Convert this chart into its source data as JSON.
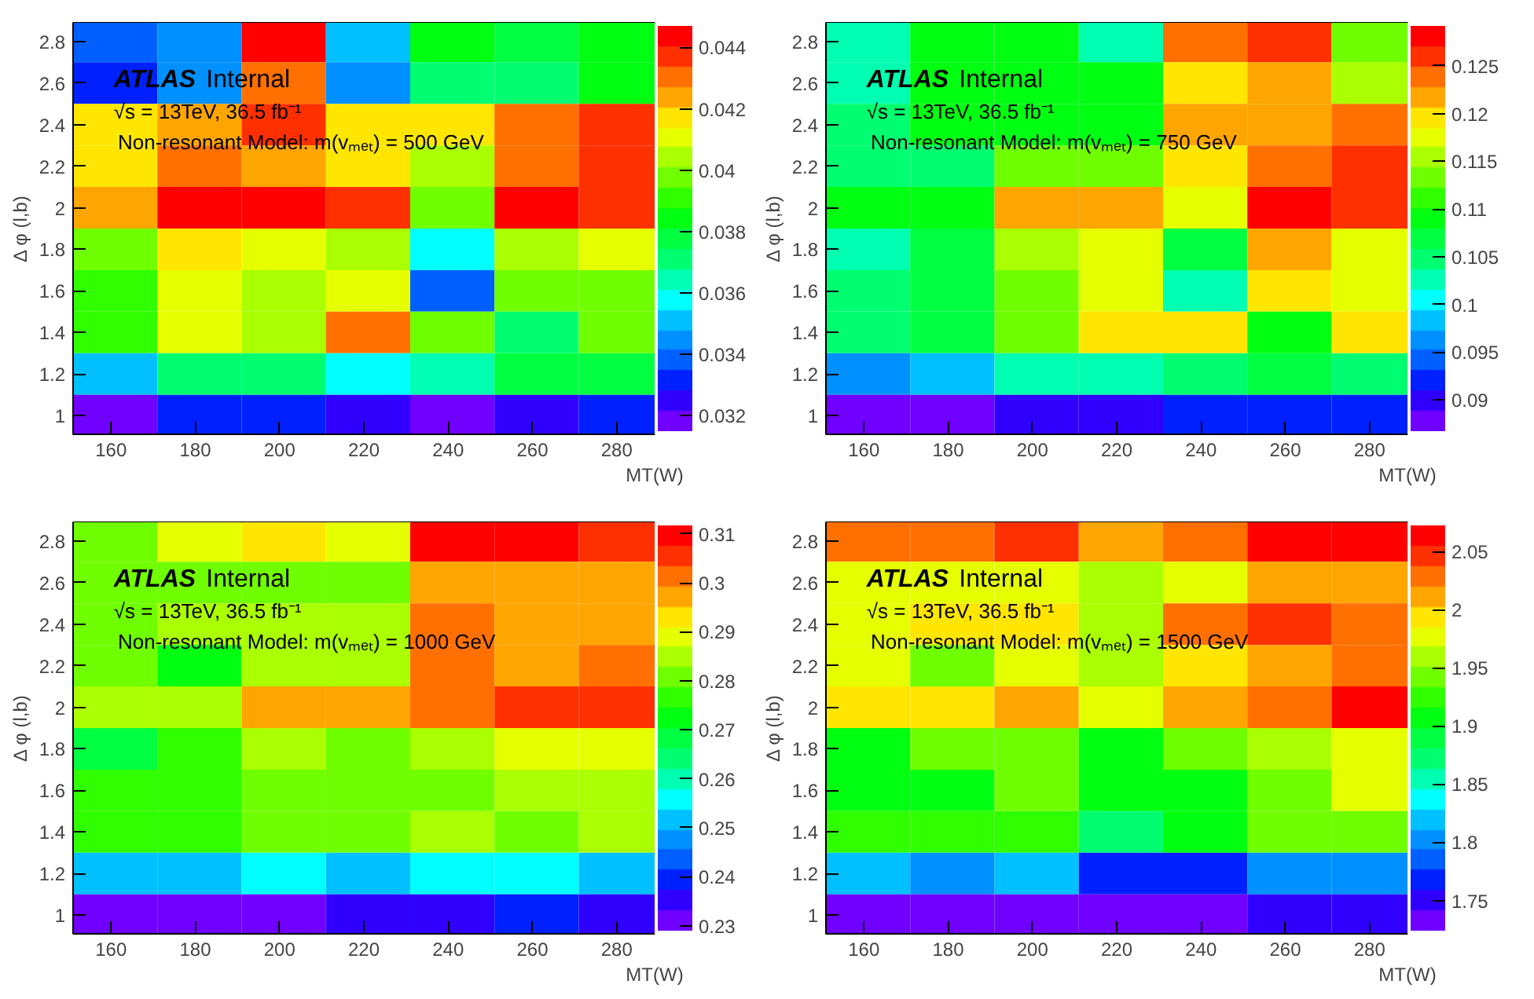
{
  "chart_data": [
    {
      "type": "heatmap",
      "xlabel": "MT(W)",
      "ylabel": "Δ φ (l,b)",
      "annotations": [
        "ATLAS Internal",
        "√s = 13TeV, 36.5 fb⁻¹",
        "Non-resonant Model: m(vₘₑₜ) = 500 GeV"
      ],
      "x": [
        161,
        181,
        201,
        221,
        241,
        261,
        281
      ],
      "y": [
        2.8,
        2.6,
        2.4,
        2.2,
        2.0,
        1.8,
        1.6,
        1.4,
        1.2,
        1.0
      ],
      "xlim": [
        151,
        289
      ],
      "ylim": [
        0.91,
        2.89
      ],
      "xticks": [
        160,
        180,
        200,
        220,
        240,
        260,
        280
      ],
      "yticks": [
        1,
        1.2,
        1.4,
        1.6,
        1.8,
        2,
        2.2,
        2.4,
        2.6,
        2.8
      ],
      "clim": [
        0.0315,
        0.0447
      ],
      "cticks": [
        0.032,
        0.034,
        0.036,
        0.038,
        0.04,
        0.042,
        0.044
      ],
      "cells": [
        [
          0.03381,
          0.03447,
          0.04437,
          0.03513,
          0.03843,
          0.03777,
          0.03843
        ],
        [
          0.03315,
          0.03447,
          0.04305,
          0.03447,
          0.03711,
          0.03711,
          0.03843
        ],
        [
          0.04173,
          0.04239,
          0.04371,
          0.04173,
          0.04173,
          0.04305,
          0.04371
        ],
        [
          0.04173,
          0.04305,
          0.04239,
          0.04173,
          0.04041,
          0.04305,
          0.04371
        ],
        [
          0.04239,
          0.04437,
          0.04437,
          0.04371,
          0.03975,
          0.04437,
          0.04371
        ],
        [
          0.03975,
          0.04173,
          0.04107,
          0.04041,
          0.03579,
          0.04041,
          0.04107
        ],
        [
          0.03909,
          0.04107,
          0.04041,
          0.04107,
          0.03381,
          0.03975,
          0.03975
        ],
        [
          0.03909,
          0.04107,
          0.04041,
          0.04305,
          0.03975,
          0.03711,
          0.03975
        ],
        [
          0.03513,
          0.03711,
          0.03711,
          0.03579,
          0.03645,
          0.03777,
          0.03777
        ],
        [
          0.03183,
          0.03315,
          0.03315,
          0.03249,
          0.03183,
          0.03249,
          0.03315
        ]
      ]
    },
    {
      "type": "heatmap",
      "xlabel": "MT(W)",
      "ylabel": "Δ φ (l,b)",
      "annotations": [
        "ATLAS Internal",
        "√s = 13TeV, 36.5 fb⁻¹",
        "Non-resonant Model: m(vₘₑₜ) = 750 GeV"
      ],
      "x": [
        161,
        181,
        201,
        221,
        241,
        261,
        281
      ],
      "y": [
        2.8,
        2.6,
        2.4,
        2.2,
        2.0,
        1.8,
        1.6,
        1.4,
        1.2,
        1.0
      ],
      "xlim": [
        151,
        289
      ],
      "ylim": [
        0.91,
        2.89
      ],
      "xticks": [
        160,
        180,
        200,
        220,
        240,
        260,
        280
      ],
      "yticks": [
        1,
        1.2,
        1.4,
        1.6,
        1.8,
        2,
        2.2,
        2.4,
        2.6,
        2.8
      ],
      "clim": [
        0.0867,
        0.1292
      ],
      "cticks": [
        0.09,
        0.095,
        0.1,
        0.105,
        0.11,
        0.115,
        0.12,
        0.125
      ],
      "cells": [
        [
          0.1026,
          0.109,
          0.109,
          0.1026,
          0.1239,
          0.126,
          0.1133
        ],
        [
          0.1026,
          0.109,
          0.109,
          0.109,
          0.1196,
          0.1218,
          0.1154
        ],
        [
          0.1048,
          0.109,
          0.109,
          0.109,
          0.1218,
          0.1218,
          0.1239
        ],
        [
          0.1048,
          0.1048,
          0.1133,
          0.1133,
          0.1196,
          0.1239,
          0.126
        ],
        [
          0.109,
          0.109,
          0.1218,
          0.1218,
          0.1175,
          0.1281,
          0.126
        ],
        [
          0.1026,
          0.1069,
          0.1154,
          0.1175,
          0.1069,
          0.1218,
          0.1175
        ],
        [
          0.1048,
          0.1069,
          0.1133,
          0.1175,
          0.1026,
          0.1196,
          0.1175
        ],
        [
          0.1048,
          0.1069,
          0.1133,
          0.1196,
          0.1196,
          0.109,
          0.1196
        ],
        [
          0.0963,
          0.0984,
          0.1026,
          0.1026,
          0.1048,
          0.1069,
          0.1048
        ],
        [
          0.0878,
          0.0878,
          0.0899,
          0.0899,
          0.092,
          0.092,
          0.092
        ]
      ]
    },
    {
      "type": "heatmap",
      "xlabel": "MT(W)",
      "ylabel": "Δ φ (l,b)",
      "annotations": [
        "ATLAS Internal",
        "√s = 13TeV, 36.5 fb⁻¹",
        "Non-resonant Model: m(vₘₑₜ) = 1000 GeV"
      ],
      "x": [
        161,
        181,
        201,
        221,
        241,
        261,
        281
      ],
      "y": [
        2.8,
        2.6,
        2.4,
        2.2,
        2.0,
        1.8,
        1.6,
        1.4,
        1.2,
        1.0
      ],
      "xlim": [
        151,
        289
      ],
      "ylim": [
        0.91,
        2.89
      ],
      "xticks": [
        160,
        180,
        200,
        220,
        240,
        260,
        280
      ],
      "yticks": [
        1,
        1.2,
        1.4,
        1.6,
        1.8,
        2,
        2.2,
        2.4,
        2.6,
        2.8
      ],
      "clim": [
        0.229,
        0.3117
      ],
      "cticks": [
        0.23,
        0.24,
        0.25,
        0.26,
        0.27,
        0.28,
        0.29,
        0.3,
        0.31
      ],
      "cells": [
        [
          0.2807,
          0.289,
          0.2931,
          0.289,
          0.3096,
          0.3096,
          0.3055
        ],
        [
          0.2807,
          0.2807,
          0.2807,
          0.2807,
          0.2972,
          0.2972,
          0.2972
        ],
        [
          0.2807,
          0.2848,
          0.2848,
          0.2848,
          0.3014,
          0.2972,
          0.2972
        ],
        [
          0.2807,
          0.2724,
          0.2848,
          0.2848,
          0.3014,
          0.2972,
          0.3014
        ],
        [
          0.2848,
          0.2848,
          0.2972,
          0.2972,
          0.3014,
          0.3055,
          0.3055
        ],
        [
          0.2683,
          0.2766,
          0.2848,
          0.2807,
          0.2848,
          0.289,
          0.289
        ],
        [
          0.2766,
          0.2766,
          0.2807,
          0.2807,
          0.2807,
          0.2848,
          0.2848
        ],
        [
          0.2766,
          0.2766,
          0.2807,
          0.2807,
          0.2848,
          0.2807,
          0.2848
        ],
        [
          0.2518,
          0.2518,
          0.2559,
          0.2518,
          0.2559,
          0.2559,
          0.2518
        ],
        [
          0.2311,
          0.2311,
          0.2311,
          0.2352,
          0.2352,
          0.2394,
          0.2352
        ]
      ]
    },
    {
      "type": "heatmap",
      "xlabel": "MT(W)",
      "ylabel": "Δ φ (l,b)",
      "annotations": [
        "ATLAS Internal",
        "√s = 13TeV, 36.5 fb⁻¹",
        "Non-resonant Model: m(vₘₑₜ) = 1500 GeV"
      ],
      "x": [
        161,
        181,
        201,
        221,
        241,
        261,
        281
      ],
      "y": [
        2.8,
        2.6,
        2.4,
        2.2,
        2.0,
        1.8,
        1.6,
        1.4,
        1.2,
        1.0
      ],
      "xlim": [
        151,
        289
      ],
      "ylim": [
        0.91,
        2.89
      ],
      "xticks": [
        160,
        180,
        200,
        220,
        240,
        260,
        280
      ],
      "yticks": [
        1,
        1.2,
        1.4,
        1.6,
        1.8,
        2,
        2.2,
        2.4,
        2.6,
        2.8
      ],
      "clim": [
        1.724,
        2.0725
      ],
      "cticks": [
        1.75,
        1.8,
        1.85,
        1.9,
        1.95,
        2,
        2.05
      ],
      "cells": [
        [
          2.029,
          2.029,
          2.046,
          2.011,
          2.029,
          2.064,
          2.064
        ],
        [
          1.977,
          1.977,
          1.977,
          1.959,
          1.977,
          2.011,
          2.011
        ],
        [
          1.977,
          1.994,
          1.994,
          1.959,
          2.029,
          2.046,
          2.029
        ],
        [
          1.977,
          1.942,
          1.977,
          1.959,
          1.994,
          2.011,
          2.029
        ],
        [
          1.994,
          1.994,
          2.011,
          1.977,
          2.011,
          2.029,
          2.064
        ],
        [
          1.907,
          1.942,
          1.942,
          1.907,
          1.942,
          1.959,
          1.977
        ],
        [
          1.907,
          1.907,
          1.942,
          1.907,
          1.907,
          1.942,
          1.977
        ],
        [
          1.924,
          1.924,
          1.924,
          1.872,
          1.907,
          1.942,
          1.942
        ],
        [
          1.82,
          1.802,
          1.82,
          1.768,
          1.768,
          1.802,
          1.802
        ],
        [
          1.733,
          1.733,
          1.733,
          1.733,
          1.733,
          1.75,
          1.75
        ]
      ]
    }
  ]
}
